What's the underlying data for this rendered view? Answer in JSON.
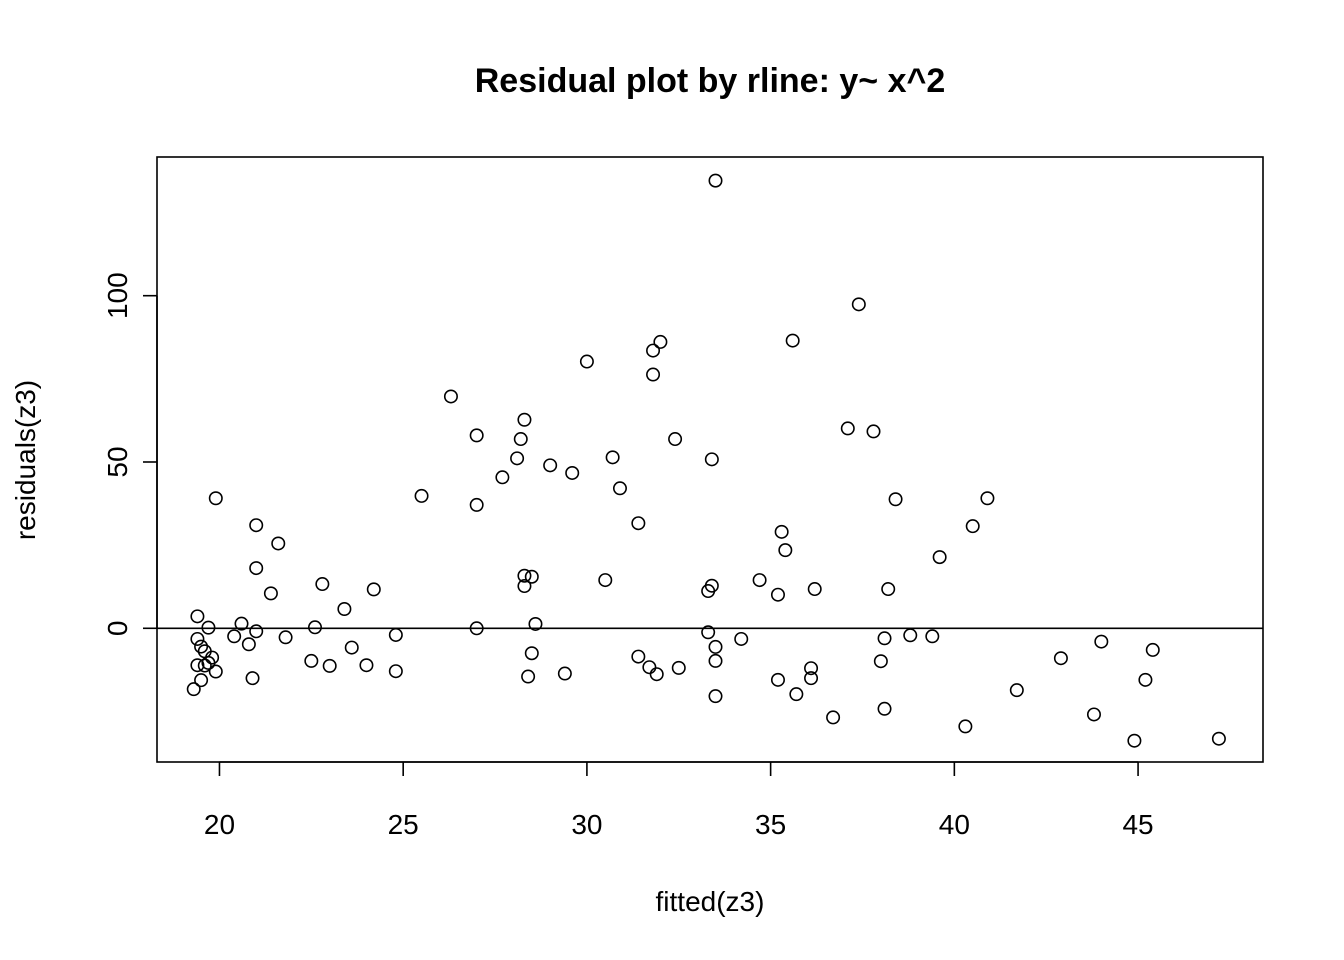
{
  "chart_data": {
    "type": "scatter",
    "title": "Residual plot by rline: y~ x^2",
    "xlabel": "fitted(z3)",
    "ylabel": "residuals(z3)",
    "xlim": [
      18.3,
      48.4
    ],
    "ylim": [
      -40.2,
      141.7
    ],
    "x_ticks": [
      20,
      25,
      30,
      35,
      40,
      45
    ],
    "y_ticks": [
      0,
      50,
      100
    ],
    "reference_line_y": 0,
    "grid": false,
    "legend": "none",
    "marker": "open-circle",
    "color": "#000000",
    "points": [
      [
        33.5,
        134.6
      ],
      [
        37.4,
        97.4
      ],
      [
        35.6,
        86.5
      ],
      [
        32.0,
        86.1
      ],
      [
        31.8,
        83.5
      ],
      [
        30.0,
        80.2
      ],
      [
        31.8,
        76.3
      ],
      [
        26.3,
        69.7
      ],
      [
        28.3,
        62.7
      ],
      [
        37.1,
        60.1
      ],
      [
        37.8,
        59.2
      ],
      [
        27.0,
        58.0
      ],
      [
        28.2,
        56.9
      ],
      [
        32.4,
        56.9
      ],
      [
        30.7,
        51.4
      ],
      [
        28.1,
        51.1
      ],
      [
        33.4,
        50.8
      ],
      [
        29.0,
        49.0
      ],
      [
        29.6,
        46.7
      ],
      [
        27.7,
        45.4
      ],
      [
        30.9,
        42.1
      ],
      [
        19.9,
        39.1
      ],
      [
        25.5,
        39.8
      ],
      [
        38.4,
        38.8
      ],
      [
        40.9,
        39.1
      ],
      [
        27.0,
        37.1
      ],
      [
        31.4,
        31.6
      ],
      [
        21.0,
        31.0
      ],
      [
        40.5,
        30.7
      ],
      [
        35.3,
        29.0
      ],
      [
        21.6,
        25.5
      ],
      [
        35.4,
        23.5
      ],
      [
        39.6,
        21.4
      ],
      [
        21.0,
        18.1
      ],
      [
        30.5,
        14.5
      ],
      [
        28.3,
        15.8
      ],
      [
        28.5,
        15.5
      ],
      [
        34.7,
        14.5
      ],
      [
        22.8,
        13.3
      ],
      [
        33.4,
        12.8
      ],
      [
        28.3,
        12.7
      ],
      [
        24.2,
        11.7
      ],
      [
        33.3,
        11.2
      ],
      [
        36.2,
        11.8
      ],
      [
        38.2,
        11.8
      ],
      [
        21.4,
        10.5
      ],
      [
        35.2,
        10.1
      ],
      [
        23.4,
        5.8
      ],
      [
        19.4,
        3.6
      ],
      [
        20.6,
        1.4
      ],
      [
        28.6,
        1.3
      ],
      [
        22.6,
        0.3
      ],
      [
        19.7,
        0.2
      ],
      [
        27.0,
        0.0
      ],
      [
        21.0,
        -0.9
      ],
      [
        33.3,
        -1.2
      ],
      [
        24.8,
        -2.0
      ],
      [
        20.4,
        -2.4
      ],
      [
        21.8,
        -2.7
      ],
      [
        38.8,
        -2.1
      ],
      [
        39.4,
        -2.4
      ],
      [
        38.1,
        -3.0
      ],
      [
        19.4,
        -3.2
      ],
      [
        34.2,
        -3.2
      ],
      [
        44.0,
        -4.0
      ],
      [
        20.8,
        -4.8
      ],
      [
        19.5,
        -5.5
      ],
      [
        33.5,
        -5.6
      ],
      [
        23.6,
        -5.8
      ],
      [
        45.4,
        -6.5
      ],
      [
        19.6,
        -6.9
      ],
      [
        28.5,
        -7.5
      ],
      [
        31.4,
        -8.5
      ],
      [
        19.8,
        -8.8
      ],
      [
        42.9,
        -9.0
      ],
      [
        22.5,
        -9.8
      ],
      [
        33.5,
        -9.8
      ],
      [
        38.0,
        -9.9
      ],
      [
        19.7,
        -10.4
      ],
      [
        19.4,
        -11.1
      ],
      [
        19.6,
        -11.2
      ],
      [
        23.0,
        -11.3
      ],
      [
        24.0,
        -11.1
      ],
      [
        31.7,
        -11.7
      ],
      [
        32.5,
        -11.9
      ],
      [
        36.1,
        -12.0
      ],
      [
        19.9,
        -13.0
      ],
      [
        24.8,
        -12.9
      ],
      [
        29.4,
        -13.6
      ],
      [
        31.9,
        -13.8
      ],
      [
        28.4,
        -14.5
      ],
      [
        20.9,
        -15.0
      ],
      [
        36.1,
        -15.0
      ],
      [
        35.2,
        -15.5
      ],
      [
        19.5,
        -15.6
      ],
      [
        45.2,
        -15.5
      ],
      [
        19.3,
        -18.3
      ],
      [
        41.7,
        -18.6
      ],
      [
        35.7,
        -19.8
      ],
      [
        33.5,
        -20.4
      ],
      [
        38.1,
        -24.2
      ],
      [
        43.8,
        -25.9
      ],
      [
        36.7,
        -26.8
      ],
      [
        40.3,
        -29.5
      ],
      [
        47.2,
        -33.2
      ],
      [
        44.9,
        -33.8
      ]
    ]
  }
}
